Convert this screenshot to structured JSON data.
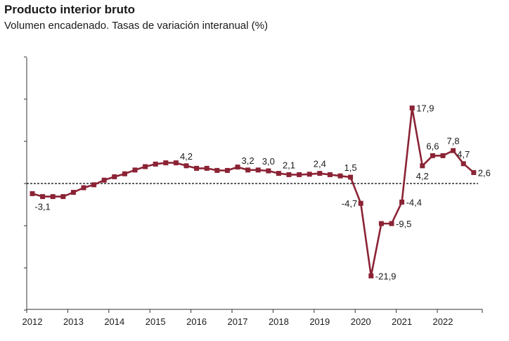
{
  "chart_data": {
    "type": "line",
    "title": "Producto interior bruto",
    "subtitle": "Volumen encadenado. Tasas de variación interanual (%)",
    "xlabel": "",
    "ylabel": "",
    "x_tick_labels": [
      "2012",
      "2013",
      "2014",
      "2015",
      "2016",
      "2017",
      "2018",
      "2019",
      "2020",
      "2021",
      "2022"
    ],
    "ylim": [
      -30,
      30
    ],
    "reference_line": {
      "y": 0,
      "style": "dashed"
    },
    "grid": false,
    "line_color": "#8b2335",
    "series": [
      {
        "quarters": [
          "2012T1",
          "2012T2",
          "2012T3",
          "2012T4",
          "2013T1",
          "2013T2",
          "2013T3",
          "2013T4",
          "2014T1",
          "2014T2",
          "2014T3",
          "2014T4",
          "2015T1",
          "2015T2",
          "2015T3",
          "2015T4",
          "2016T1",
          "2016T2",
          "2016T3",
          "2016T4",
          "2017T1",
          "2017T2",
          "2017T3",
          "2017T4",
          "2018T1",
          "2018T2",
          "2018T3",
          "2018T4",
          "2019T1",
          "2019T2",
          "2019T3",
          "2019T4",
          "2020T1",
          "2020T2",
          "2020T3",
          "2020T4",
          "2021T1",
          "2021T2",
          "2021T3",
          "2021T4",
          "2022T1",
          "2022T2",
          "2022T3",
          "2022T4"
        ],
        "values": [
          -2.4,
          -3.1,
          -3.1,
          -3.1,
          -2.1,
          -1.0,
          -0.3,
          0.8,
          1.6,
          2.3,
          3.2,
          4.0,
          4.6,
          4.9,
          4.9,
          4.2,
          3.6,
          3.6,
          3.1,
          3.1,
          3.9,
          3.2,
          3.2,
          3.0,
          2.4,
          2.1,
          2.1,
          2.2,
          2.4,
          2.1,
          1.8,
          1.5,
          -4.7,
          -21.9,
          -9.5,
          -9.5,
          -4.4,
          17.9,
          4.2,
          6.6,
          6.6,
          7.8,
          4.7,
          2.6
        ]
      }
    ],
    "data_labels": [
      {
        "index": 1,
        "text": "-3,1",
        "pos": "below"
      },
      {
        "index": 15,
        "text": "4,2",
        "pos": "above"
      },
      {
        "index": 21,
        "text": "3,2",
        "pos": "above"
      },
      {
        "index": 23,
        "text": "3,0",
        "pos": "above"
      },
      {
        "index": 25,
        "text": "2,1",
        "pos": "above"
      },
      {
        "index": 28,
        "text": "2,4",
        "pos": "above"
      },
      {
        "index": 31,
        "text": "1,5",
        "pos": "above"
      },
      {
        "index": 32,
        "text": "-4,7",
        "pos": "left"
      },
      {
        "index": 33,
        "text": "-21,9",
        "pos": "right"
      },
      {
        "index": 35,
        "text": "-9,5",
        "pos": "right"
      },
      {
        "index": 36,
        "text": "-4,4",
        "pos": "right"
      },
      {
        "index": 37,
        "text": "17,9",
        "pos": "right"
      },
      {
        "index": 38,
        "text": "4,2",
        "pos": "below"
      },
      {
        "index": 39,
        "text": "6,6",
        "pos": "above"
      },
      {
        "index": 41,
        "text": "7,8",
        "pos": "above"
      },
      {
        "index": 42,
        "text": "4,7",
        "pos": "above"
      },
      {
        "index": 43,
        "text": "2,6",
        "pos": "right"
      }
    ]
  }
}
